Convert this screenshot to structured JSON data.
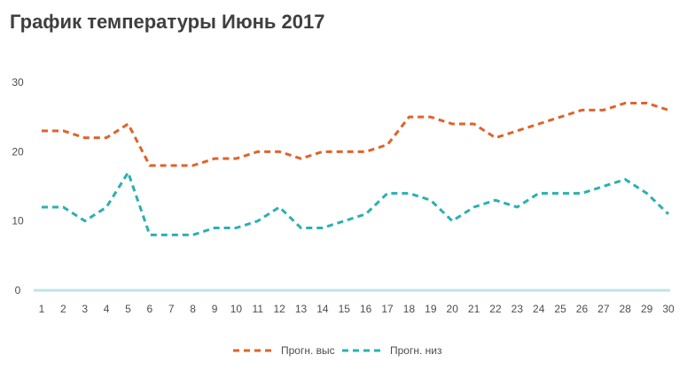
{
  "chart_data": {
    "type": "line",
    "title": "График температуры Июнь 2017",
    "xlabel": "",
    "ylabel": "",
    "x": [
      1,
      2,
      3,
      4,
      5,
      6,
      7,
      8,
      9,
      10,
      11,
      12,
      13,
      14,
      15,
      16,
      17,
      18,
      19,
      20,
      21,
      22,
      23,
      24,
      25,
      26,
      27,
      28,
      29,
      30
    ],
    "yticks": [
      0,
      10,
      20,
      30
    ],
    "ylim": [
      0,
      30
    ],
    "grid": false,
    "legend_position": "bottom",
    "series": [
      {
        "name": "Прогн. выс",
        "color": "#e0622a",
        "line_style": "dashed",
        "values": [
          23,
          23,
          22,
          22,
          24,
          18,
          18,
          18,
          19,
          19,
          20,
          20,
          19,
          20,
          20,
          20,
          21,
          25,
          25,
          24,
          24,
          22,
          23,
          24,
          25,
          26,
          26,
          27,
          27,
          26
        ]
      },
      {
        "name": "Прогн. низ",
        "color": "#2ab0b3",
        "line_style": "dashed",
        "values": [
          12,
          12,
          10,
          12,
          17,
          8,
          8,
          8,
          9,
          9,
          10,
          12,
          9,
          9,
          10,
          11,
          14,
          14,
          13,
          10,
          12,
          13,
          12,
          14,
          14,
          14,
          15,
          16,
          14,
          11
        ]
      }
    ],
    "baseline_color": "#bfe3e8",
    "text_color": "#4d4d4d",
    "title_color": "#3f3f3f"
  }
}
